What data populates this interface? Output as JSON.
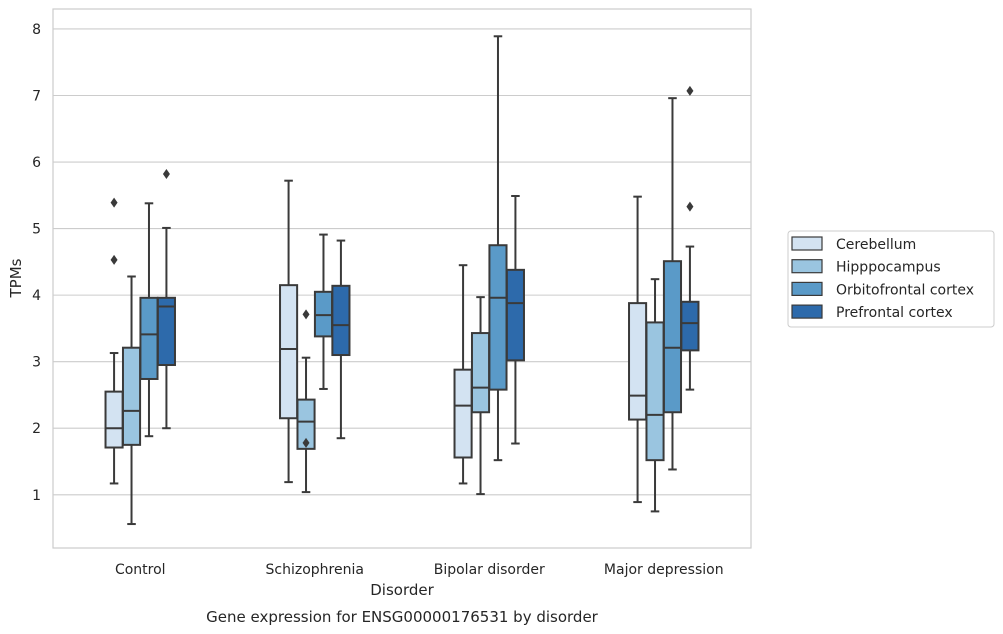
{
  "chart_data": {
    "type": "box",
    "title": "Gene expression for ENSG00000176531 by disorder",
    "xlabel": "Disorder",
    "ylabel": "TPMs",
    "ylim": [
      0.2,
      8.3
    ],
    "yticks": [
      1,
      2,
      3,
      4,
      5,
      6,
      7,
      8
    ],
    "grid": true,
    "legend_position": "right",
    "categories": [
      "Control",
      "Schizophrenia",
      "Bipolar disorder",
      "Major depression"
    ],
    "series": [
      {
        "name": "Cerebellum",
        "color": "#d3e3f2",
        "boxes": [
          {
            "whisker_low": 1.17,
            "q1": 1.71,
            "median": 2.0,
            "q3": 2.55,
            "whisker_high": 3.13,
            "outliers": [
              4.53,
              5.39
            ]
          },
          {
            "whisker_low": 1.19,
            "q1": 2.15,
            "median": 3.19,
            "q3": 4.15,
            "whisker_high": 5.72,
            "outliers": []
          },
          {
            "whisker_low": 1.17,
            "q1": 1.56,
            "median": 2.34,
            "q3": 2.88,
            "whisker_high": 4.45,
            "outliers": []
          },
          {
            "whisker_low": 0.89,
            "q1": 2.13,
            "median": 2.49,
            "q3": 3.88,
            "whisker_high": 5.48,
            "outliers": []
          }
        ]
      },
      {
        "name": "Hipppocampus",
        "color": "#9ac5e0",
        "boxes": [
          {
            "whisker_low": 0.56,
            "q1": 1.75,
            "median": 2.26,
            "q3": 3.21,
            "whisker_high": 4.28,
            "outliers": []
          },
          {
            "whisker_low": 1.04,
            "q1": 1.69,
            "median": 2.1,
            "q3": 2.43,
            "whisker_high": 3.06,
            "outliers": [
              1.78,
              3.71
            ]
          },
          {
            "whisker_low": 1.01,
            "q1": 2.24,
            "median": 2.61,
            "q3": 3.43,
            "whisker_high": 3.97,
            "outliers": []
          },
          {
            "whisker_low": 0.75,
            "q1": 1.52,
            "median": 2.2,
            "q3": 3.59,
            "whisker_high": 4.24,
            "outliers": []
          }
        ]
      },
      {
        "name": "Orbitofrontal cortex",
        "color": "#5a9ac8",
        "boxes": [
          {
            "whisker_low": 1.88,
            "q1": 2.74,
            "median": 3.41,
            "q3": 3.96,
            "whisker_high": 5.38,
            "outliers": []
          },
          {
            "whisker_low": 2.59,
            "q1": 3.38,
            "median": 3.7,
            "q3": 4.05,
            "whisker_high": 4.91,
            "outliers": []
          },
          {
            "whisker_low": 1.52,
            "q1": 2.58,
            "median": 3.96,
            "q3": 4.75,
            "whisker_high": 7.89,
            "outliers": []
          },
          {
            "whisker_low": 1.38,
            "q1": 2.24,
            "median": 3.21,
            "q3": 4.51,
            "whisker_high": 6.96,
            "outliers": []
          }
        ]
      },
      {
        "name": "Prefrontal cortex",
        "color": "#2d6aab",
        "boxes": [
          {
            "whisker_low": 2.0,
            "q1": 2.95,
            "median": 3.83,
            "q3": 3.96,
            "whisker_high": 5.01,
            "outliers": [
              5.82
            ]
          },
          {
            "whisker_low": 1.85,
            "q1": 3.1,
            "median": 3.55,
            "q3": 4.14,
            "whisker_high": 4.82,
            "outliers": []
          },
          {
            "whisker_low": 1.77,
            "q1": 3.02,
            "median": 3.88,
            "q3": 4.38,
            "whisker_high": 5.49,
            "outliers": []
          },
          {
            "whisker_low": 2.58,
            "q1": 3.17,
            "median": 3.58,
            "q3": 3.9,
            "whisker_high": 4.73,
            "outliers": [
              5.33,
              7.07
            ]
          }
        ]
      }
    ]
  }
}
